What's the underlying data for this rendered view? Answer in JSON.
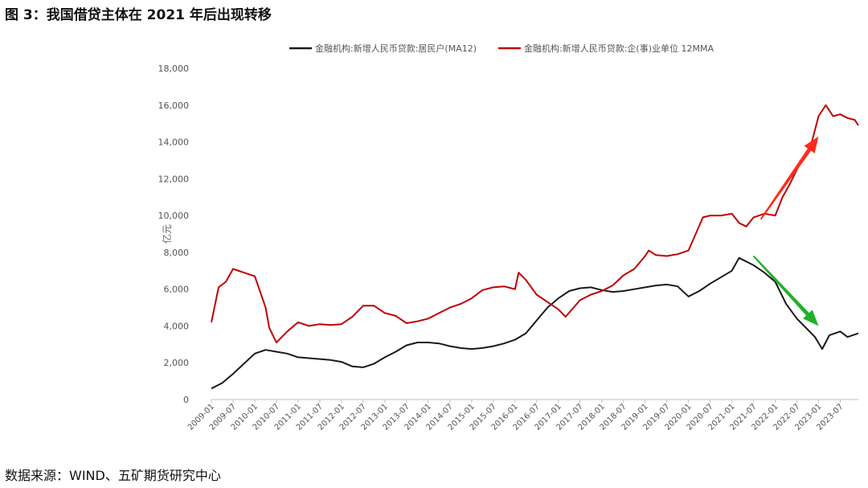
{
  "figure": {
    "title": "图 3：我国借贷主体在 2021 年后出现转移",
    "source": "数据来源：WIND、五矿期货研究中心"
  },
  "chart_data": {
    "type": "line",
    "ylabel": "亿元",
    "ylim": [
      0,
      18000
    ],
    "yticks": [
      0,
      2000,
      4000,
      6000,
      8000,
      10000,
      12000,
      14000,
      16000,
      18000
    ],
    "ytick_labels": [
      "0",
      "2,000",
      "4,000",
      "6,000",
      "8,000",
      "10,000",
      "12,000",
      "14,000",
      "16,000",
      "18,000"
    ],
    "x_start": "2009-01",
    "x_end": "2023-12",
    "xtick_labels": [
      "2009-01",
      "2009-07",
      "2010-01",
      "2010-07",
      "2011-01",
      "2011-07",
      "2012-01",
      "2012-07",
      "2013-01",
      "2013-07",
      "2014-01",
      "2014-07",
      "2015-01",
      "2015-07",
      "2016-01",
      "2016-07",
      "2017-01",
      "2017-07",
      "2018-01",
      "2018-07",
      "2019-01",
      "2019-07",
      "2020-01",
      "2020-07",
      "2021-01",
      "2021-07",
      "2022-01",
      "2022-07",
      "2023-01",
      "2023-07"
    ],
    "legend_position": "top",
    "grid": false,
    "series": [
      {
        "name": "金融机构:新增人民币贷款:居民户(MA12)",
        "color": "#1a1a1a",
        "points": [
          [
            "2009-01",
            600
          ],
          [
            "2009-04",
            900
          ],
          [
            "2009-07",
            1400
          ],
          [
            "2009-10",
            1950
          ],
          [
            "2010-01",
            2500
          ],
          [
            "2010-04",
            2700
          ],
          [
            "2010-07",
            2600
          ],
          [
            "2010-10",
            2500
          ],
          [
            "2011-01",
            2300
          ],
          [
            "2011-04",
            2250
          ],
          [
            "2011-07",
            2200
          ],
          [
            "2011-10",
            2150
          ],
          [
            "2012-01",
            2050
          ],
          [
            "2012-04",
            1800
          ],
          [
            "2012-07",
            1750
          ],
          [
            "2012-10",
            1950
          ],
          [
            "2013-01",
            2300
          ],
          [
            "2013-04",
            2600
          ],
          [
            "2013-07",
            2950
          ],
          [
            "2013-10",
            3100
          ],
          [
            "2014-01",
            3100
          ],
          [
            "2014-04",
            3050
          ],
          [
            "2014-07",
            2900
          ],
          [
            "2014-10",
            2800
          ],
          [
            "2015-01",
            2750
          ],
          [
            "2015-04",
            2800
          ],
          [
            "2015-07",
            2900
          ],
          [
            "2015-10",
            3050
          ],
          [
            "2016-01",
            3250
          ],
          [
            "2016-04",
            3600
          ],
          [
            "2016-07",
            4300
          ],
          [
            "2016-10",
            5000
          ],
          [
            "2017-01",
            5500
          ],
          [
            "2017-04",
            5900
          ],
          [
            "2017-07",
            6050
          ],
          [
            "2017-10",
            6100
          ],
          [
            "2018-01",
            5950
          ],
          [
            "2018-04",
            5850
          ],
          [
            "2018-07",
            5900
          ],
          [
            "2018-10",
            6000
          ],
          [
            "2019-01",
            6100
          ],
          [
            "2019-04",
            6200
          ],
          [
            "2019-07",
            6250
          ],
          [
            "2019-10",
            6150
          ],
          [
            "2020-01",
            5600
          ],
          [
            "2020-04",
            5900
          ],
          [
            "2020-07",
            6300
          ],
          [
            "2020-10",
            6650
          ],
          [
            "2021-01",
            7000
          ],
          [
            "2021-03",
            7700
          ],
          [
            "2021-07",
            7300
          ],
          [
            "2021-10",
            6900
          ],
          [
            "2022-01",
            6400
          ],
          [
            "2022-04",
            5200
          ],
          [
            "2022-07",
            4400
          ],
          [
            "2022-10",
            3800
          ],
          [
            "2022-12",
            3400
          ],
          [
            "2023-02",
            2750
          ],
          [
            "2023-04",
            3500
          ],
          [
            "2023-07",
            3700
          ],
          [
            "2023-09",
            3400
          ],
          [
            "2023-12",
            3600
          ]
        ]
      },
      {
        "name": "金融机构:新增人民币贷款:企(事)业单位 12MMA",
        "color": "#c00000",
        "points": [
          [
            "2009-01",
            4200
          ],
          [
            "2009-03",
            6100
          ],
          [
            "2009-05",
            6400
          ],
          [
            "2009-07",
            7100
          ],
          [
            "2009-10",
            6900
          ],
          [
            "2010-01",
            6700
          ],
          [
            "2010-04",
            5000
          ],
          [
            "2010-05",
            3900
          ],
          [
            "2010-07",
            3100
          ],
          [
            "2010-10",
            3700
          ],
          [
            "2011-01",
            4200
          ],
          [
            "2011-04",
            4000
          ],
          [
            "2011-07",
            4100
          ],
          [
            "2011-10",
            4050
          ],
          [
            "2012-01",
            4100
          ],
          [
            "2012-04",
            4500
          ],
          [
            "2012-07",
            5100
          ],
          [
            "2012-10",
            5100
          ],
          [
            "2013-01",
            4700
          ],
          [
            "2013-04",
            4550
          ],
          [
            "2013-07",
            4150
          ],
          [
            "2013-10",
            4250
          ],
          [
            "2014-01",
            4400
          ],
          [
            "2014-04",
            4700
          ],
          [
            "2014-07",
            5000
          ],
          [
            "2014-10",
            5200
          ],
          [
            "2015-01",
            5500
          ],
          [
            "2015-04",
            5950
          ],
          [
            "2015-07",
            6100
          ],
          [
            "2015-10",
            6150
          ],
          [
            "2016-01",
            6000
          ],
          [
            "2016-02",
            6900
          ],
          [
            "2016-04",
            6500
          ],
          [
            "2016-07",
            5700
          ],
          [
            "2016-10",
            5300
          ],
          [
            "2017-01",
            4900
          ],
          [
            "2017-03",
            4500
          ],
          [
            "2017-07",
            5400
          ],
          [
            "2017-10",
            5700
          ],
          [
            "2018-01",
            5900
          ],
          [
            "2018-04",
            6200
          ],
          [
            "2018-07",
            6750
          ],
          [
            "2018-10",
            7100
          ],
          [
            "2019-01",
            7800
          ],
          [
            "2019-02",
            8100
          ],
          [
            "2019-04",
            7850
          ],
          [
            "2019-07",
            7800
          ],
          [
            "2019-10",
            7900
          ],
          [
            "2020-01",
            8100
          ],
          [
            "2020-03",
            9000
          ],
          [
            "2020-05",
            9900
          ],
          [
            "2020-07",
            10000
          ],
          [
            "2020-10",
            10000
          ],
          [
            "2021-01",
            10100
          ],
          [
            "2021-03",
            9600
          ],
          [
            "2021-05",
            9400
          ],
          [
            "2021-07",
            9900
          ],
          [
            "2021-10",
            10100
          ],
          [
            "2022-01",
            10000
          ],
          [
            "2022-03",
            11000
          ],
          [
            "2022-05",
            11700
          ],
          [
            "2022-07",
            12500
          ],
          [
            "2022-09",
            13200
          ],
          [
            "2022-11",
            13900
          ],
          [
            "2023-01",
            15400
          ],
          [
            "2023-03",
            16000
          ],
          [
            "2023-05",
            15400
          ],
          [
            "2023-07",
            15500
          ],
          [
            "2023-09",
            15300
          ],
          [
            "2023-11",
            15200
          ],
          [
            "2023-12",
            14900
          ]
        ]
      }
    ],
    "annotations": [
      {
        "shape": "arrow",
        "color": "#ff2a1a",
        "from": [
          "2021-09",
          9800
        ],
        "to": [
          "2023-01",
          14300
        ]
      },
      {
        "shape": "arrow",
        "color": "#22b02a",
        "from": [
          "2021-07",
          7800
        ],
        "to": [
          "2023-01",
          4000
        ]
      }
    ]
  }
}
